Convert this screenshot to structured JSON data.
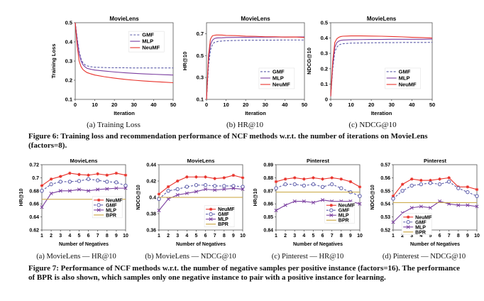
{
  "figure6": {
    "caption": "Figure 6: Training loss and recommendation performance of NCF methods w.r.t. the number of iterations on MovieLens (factors=8).",
    "sublabels": [
      "(a) Training Loss",
      "(b) HR@10",
      "(c) NDCG@10"
    ]
  },
  "figure7": {
    "caption": "Figure 7: Performance of NCF methods w.r.t. the number of negative samples per positive instance (factors=16). The performance of BPR is also shown, which samples only one negative instance to pair with a positive instance for learning.",
    "sublabels": [
      "(a) MovieLens — HR@10",
      "(b) MovieLens — NDCG@10",
      "(c) Pinterest — HR@10",
      "(d) Pinterest — NDCG@10"
    ]
  },
  "colors": {
    "GMF": "#5a5aa8",
    "MLP": "#7b3fa0",
    "NeuMF": "#e8322b",
    "BPR": "#c8a23a"
  },
  "chart_data": [
    {
      "type": "line",
      "title": "MovieLens",
      "xlabel": "Iteration",
      "ylabel": "Training Loss",
      "xlim": [
        0,
        50
      ],
      "ylim": [
        0.1,
        0.5
      ],
      "xticks": [
        0,
        10,
        20,
        30,
        40,
        50
      ],
      "yticks": [
        0.1,
        0.2,
        0.3,
        0.4,
        0.5
      ],
      "legend": "top-right",
      "x": [
        0,
        1,
        2,
        3,
        4,
        5,
        6,
        8,
        10,
        15,
        20,
        25,
        30,
        35,
        40,
        45,
        50
      ],
      "series": [
        {
          "name": "GMF",
          "style": "dashed",
          "values": [
            0.5,
            0.42,
            0.35,
            0.31,
            0.29,
            0.28,
            0.275,
            0.27,
            0.268,
            0.266,
            0.265,
            0.265,
            0.264,
            0.264,
            0.264,
            0.264,
            0.264
          ]
        },
        {
          "name": "MLP",
          "style": "solid",
          "values": [
            0.5,
            0.41,
            0.34,
            0.3,
            0.28,
            0.27,
            0.262,
            0.257,
            0.253,
            0.248,
            0.243,
            0.239,
            0.236,
            0.233,
            0.231,
            0.229,
            0.227
          ]
        },
        {
          "name": "NeuMF",
          "style": "solid",
          "values": [
            0.5,
            0.38,
            0.3,
            0.27,
            0.255,
            0.247,
            0.24,
            0.233,
            0.227,
            0.218,
            0.211,
            0.205,
            0.2,
            0.196,
            0.193,
            0.19,
            0.187
          ]
        }
      ]
    },
    {
      "type": "line",
      "title": "MovieLens",
      "xlabel": "Iteration",
      "ylabel": "HR@10",
      "xlim": [
        0,
        50
      ],
      "ylim": [
        0.1,
        0.8
      ],
      "xticks": [
        0,
        10,
        20,
        30,
        40,
        50
      ],
      "yticks": [
        0.1,
        0.3,
        0.5,
        0.7
      ],
      "legend": "bottom-right",
      "x": [
        0,
        1,
        2,
        3,
        4,
        5,
        6,
        8,
        10,
        15,
        20,
        25,
        30,
        35,
        40,
        45,
        50
      ],
      "series": [
        {
          "name": "GMF",
          "style": "dashed",
          "values": [
            0.1,
            0.4,
            0.55,
            0.6,
            0.62,
            0.625,
            0.63,
            0.633,
            0.636,
            0.638,
            0.64,
            0.64,
            0.641,
            0.641,
            0.642,
            0.642,
            0.642
          ]
        },
        {
          "name": "MLP",
          "style": "solid",
          "values": [
            0.1,
            0.45,
            0.6,
            0.64,
            0.655,
            0.66,
            0.662,
            0.663,
            0.665,
            0.666,
            0.667,
            0.668,
            0.668,
            0.669,
            0.669,
            0.67,
            0.67
          ]
        },
        {
          "name": "NeuMF",
          "style": "solid",
          "values": [
            0.1,
            0.5,
            0.65,
            0.68,
            0.685,
            0.688,
            0.688,
            0.687,
            0.684,
            0.682,
            0.677,
            0.676,
            0.672,
            0.672,
            0.669,
            0.67,
            0.665
          ]
        }
      ]
    },
    {
      "type": "line",
      "title": "MovieLens",
      "xlabel": "Iteration",
      "ylabel": "NDCG@10",
      "xlim": [
        0,
        50
      ],
      "ylim": [
        0,
        0.5
      ],
      "xticks": [
        0,
        10,
        20,
        30,
        40,
        50
      ],
      "yticks": [
        0,
        0.1,
        0.2,
        0.3,
        0.4,
        0.5
      ],
      "legend": "bottom-right",
      "x": [
        0,
        1,
        2,
        3,
        4,
        5,
        6,
        8,
        10,
        15,
        20,
        25,
        30,
        35,
        40,
        45,
        50
      ],
      "series": [
        {
          "name": "GMF",
          "style": "dashed",
          "values": [
            0.02,
            0.2,
            0.31,
            0.34,
            0.355,
            0.36,
            0.363,
            0.365,
            0.367,
            0.368,
            0.369,
            0.37,
            0.37,
            0.371,
            0.371,
            0.371,
            0.372
          ]
        },
        {
          "name": "MLP",
          "style": "solid",
          "values": [
            0.02,
            0.22,
            0.34,
            0.37,
            0.38,
            0.385,
            0.387,
            0.388,
            0.389,
            0.39,
            0.391,
            0.391,
            0.392,
            0.392,
            0.392,
            0.392,
            0.393
          ]
        },
        {
          "name": "NeuMF",
          "style": "solid",
          "values": [
            0.02,
            0.25,
            0.37,
            0.395,
            0.405,
            0.41,
            0.412,
            0.413,
            0.414,
            0.414,
            0.413,
            0.412,
            0.41,
            0.408,
            0.405,
            0.403,
            0.4
          ]
        }
      ]
    },
    {
      "type": "line",
      "title": "MovieLens",
      "xlabel": "Number of Negatives",
      "ylabel": "HR@10",
      "xlim": [
        1,
        10
      ],
      "ylim": [
        0.62,
        0.72
      ],
      "xticks": [
        1,
        2,
        3,
        4,
        5,
        6,
        7,
        8,
        9,
        10
      ],
      "yticks": [
        0.62,
        0.64,
        0.66,
        0.68,
        0.7,
        0.72
      ],
      "legend": "right",
      "x": [
        1,
        2,
        3,
        4,
        5,
        6,
        7,
        8,
        9,
        10
      ],
      "series": [
        {
          "name": "NeuMF",
          "style": "solid",
          "marker": "*",
          "values": [
            0.688,
            0.698,
            0.702,
            0.707,
            0.705,
            0.704,
            0.706,
            0.704,
            0.707,
            0.704
          ]
        },
        {
          "name": "GMF",
          "style": "dashed",
          "marker": "o",
          "values": [
            0.68,
            0.69,
            0.694,
            0.694,
            0.695,
            0.698,
            0.696,
            0.694,
            0.693,
            0.688
          ]
        },
        {
          "name": "MLP",
          "style": "solid",
          "marker": "x",
          "values": [
            0.655,
            0.676,
            0.68,
            0.68,
            0.682,
            0.68,
            0.682,
            0.683,
            0.684,
            0.684
          ]
        },
        {
          "name": "BPR",
          "style": "solid",
          "marker": "",
          "values": [
            0.667,
            0.667,
            0.667,
            0.667,
            0.667,
            0.667,
            0.667,
            0.667,
            0.667,
            0.667
          ]
        }
      ]
    },
    {
      "type": "line",
      "title": "MovieLens",
      "xlabel": "Number of Negatives",
      "ylabel": "NDCG@10",
      "xlim": [
        1,
        10
      ],
      "ylim": [
        0.36,
        0.44
      ],
      "xticks": [
        1,
        2,
        3,
        4,
        5,
        6,
        7,
        8,
        9,
        10
      ],
      "yticks": [
        0.36,
        0.38,
        0.4,
        0.42,
        0.44
      ],
      "legend": "bottom-right",
      "x": [
        1,
        2,
        3,
        4,
        5,
        6,
        7,
        8,
        9,
        10
      ],
      "series": [
        {
          "name": "NeuMF",
          "style": "solid",
          "marker": "*",
          "values": [
            0.404,
            0.413,
            0.42,
            0.425,
            0.425,
            0.425,
            0.423,
            0.424,
            0.427,
            0.424
          ]
        },
        {
          "name": "GMF",
          "style": "dashed",
          "marker": "o",
          "values": [
            0.398,
            0.408,
            0.41,
            0.413,
            0.415,
            0.415,
            0.414,
            0.414,
            0.414,
            0.413
          ]
        },
        {
          "name": "MLP",
          "style": "solid",
          "marker": "x",
          "values": [
            0.384,
            0.398,
            0.403,
            0.405,
            0.407,
            0.41,
            0.409,
            0.41,
            0.411,
            0.41
          ]
        },
        {
          "name": "BPR",
          "style": "solid",
          "marker": "",
          "values": [
            0.4,
            0.4,
            0.4,
            0.4,
            0.4,
            0.4,
            0.4,
            0.4,
            0.4,
            0.4
          ]
        }
      ]
    },
    {
      "type": "line",
      "title": "Pinterest",
      "xlabel": "Number of Negatives",
      "ylabel": "HR@10",
      "xlim": [
        1,
        10
      ],
      "ylim": [
        0.84,
        0.89
      ],
      "xticks": [
        1,
        2,
        3,
        4,
        5,
        6,
        7,
        8,
        9,
        10
      ],
      "yticks": [
        0.84,
        0.85,
        0.86,
        0.87,
        0.88,
        0.89
      ],
      "legend": "bottom-right",
      "x": [
        1,
        2,
        3,
        4,
        5,
        6,
        7,
        8,
        9,
        10
      ],
      "series": [
        {
          "name": "NeuMF",
          "style": "solid",
          "marker": "*",
          "values": [
            0.877,
            0.879,
            0.88,
            0.879,
            0.88,
            0.879,
            0.88,
            0.879,
            0.877,
            0.873
          ]
        },
        {
          "name": "GMF",
          "style": "dashed",
          "marker": "o",
          "values": [
            0.872,
            0.875,
            0.875,
            0.874,
            0.875,
            0.873,
            0.875,
            0.872,
            0.869,
            0.866
          ]
        },
        {
          "name": "MLP",
          "style": "solid",
          "marker": "x",
          "values": [
            0.855,
            0.859,
            0.862,
            0.862,
            0.861,
            0.863,
            0.862,
            0.862,
            0.862,
            0.86
          ]
        },
        {
          "name": "BPR",
          "style": "solid",
          "marker": "",
          "values": [
            0.869,
            0.869,
            0.869,
            0.869,
            0.869,
            0.869,
            0.869,
            0.869,
            0.869,
            0.869
          ]
        }
      ]
    },
    {
      "type": "line",
      "title": "Pinterest",
      "xlabel": "Number of Negatives",
      "ylabel": "NDCG@10",
      "xlim": [
        1,
        10
      ],
      "ylim": [
        0.52,
        0.57
      ],
      "xticks": [
        1,
        2,
        3,
        4,
        5,
        6,
        7,
        8,
        9,
        10
      ],
      "yticks": [
        0.52,
        0.53,
        0.54,
        0.55,
        0.56,
        0.57
      ],
      "legend": "bottom",
      "x": [
        1,
        2,
        3,
        4,
        5,
        6,
        7,
        8,
        9,
        10
      ],
      "series": [
        {
          "name": "NeuMF",
          "style": "solid",
          "marker": "*",
          "values": [
            0.546,
            0.555,
            0.559,
            0.558,
            0.558,
            0.559,
            0.56,
            0.553,
            0.553,
            0.551
          ]
        },
        {
          "name": "GMF",
          "style": "dashed",
          "marker": "o",
          "values": [
            0.544,
            0.55,
            0.554,
            0.555,
            0.556,
            0.555,
            0.557,
            0.552,
            0.549,
            0.546
          ]
        },
        {
          "name": "MLP",
          "style": "solid",
          "marker": "x",
          "values": [
            0.526,
            0.533,
            0.537,
            0.538,
            0.537,
            0.542,
            0.54,
            0.539,
            0.539,
            0.538
          ]
        },
        {
          "name": "BPR",
          "style": "solid",
          "marker": "",
          "values": [
            0.541,
            0.541,
            0.541,
            0.541,
            0.541,
            0.541,
            0.541,
            0.541,
            0.541,
            0.541
          ]
        }
      ]
    }
  ]
}
